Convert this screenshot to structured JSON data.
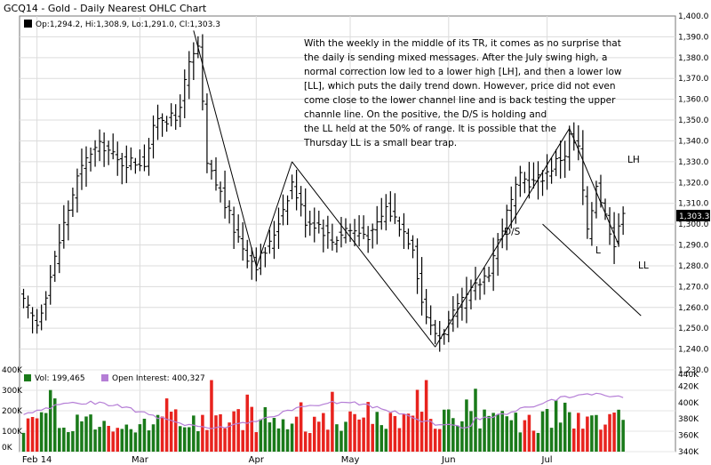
{
  "chart": {
    "title": "GCQ14 - Gold - Daily Nearest OHLC Chart",
    "ohlc_label": "Op:1,294.2, Hi:1,308.9, Lo:1,291.0, Cl:1,303.3",
    "last_price": "1,303.3",
    "volume_label": "Vol: 199,465",
    "oi_label": "Open Interest: 400,327",
    "annotation_lines": [
      "With the weekly in the middle of its TR, it comes as no surprise that",
      "the daily is sending mixed messages.  After the July swing high, a",
      "normal correction low led to a lower high [LH], and then a lower low",
      "[LL], which puts the daily trend down.  However, price did not even",
      "come close to the lower channel line and is back testing the upper",
      "channle line.  On the positive, the D/S is holding and",
      "the LL held at the 50% of range.  It is possible that the",
      "Thursday LL is a small bear trap."
    ],
    "labels": {
      "ds": "D/S",
      "lh": "LH",
      "l": "L",
      "ll": "LL"
    },
    "colors": {
      "up": "#1a7a1a",
      "down": "#e8231e",
      "oi": "#b57ed6",
      "bar": "#000000"
    }
  },
  "chart_data": [
    {
      "type": "ohlc",
      "title": "GCQ14 - Gold - Daily Nearest OHLC Chart",
      "y_ticks": [
        "1,230.0",
        "1,240.0",
        "1,250.0",
        "1,260.0",
        "1,270.0",
        "1,280.0",
        "1,290.0",
        "1,300.0",
        "1,310.0",
        "1,320.0",
        "1,330.0",
        "1,340.0",
        "1,350.0",
        "1,360.0",
        "1,370.0",
        "1,380.0",
        "1,390.0",
        "1,400.0"
      ],
      "ylim": [
        1230,
        1400
      ],
      "x_ticks": [
        "Feb 14",
        "Mar",
        "Apr",
        "May",
        "Jun",
        "Jul"
      ],
      "x_tick_index": [
        3,
        26,
        52,
        73,
        95,
        117
      ],
      "n_days": 145,
      "trendlines": [
        {
          "from": [
            38,
            1393
          ],
          "to": [
            52,
            1280
          ]
        },
        {
          "from": [
            52,
            1279
          ],
          "to": [
            60,
            1330
          ]
        },
        {
          "from": [
            60,
            1330
          ],
          "to": [
            92,
            1241
          ]
        },
        {
          "from": [
            92,
            1241
          ],
          "to": [
            122,
            1346
          ]
        },
        {
          "from": [
            122,
            1346
          ],
          "to": [
            133,
            1290
          ]
        },
        {
          "from": [
            116,
            1300
          ],
          "to": [
            138,
            1256
          ]
        }
      ],
      "anchors": [
        [
          0,
          1262
        ],
        [
          3,
          1252
        ],
        [
          6,
          1275
        ],
        [
          9,
          1300
        ],
        [
          12,
          1322
        ],
        [
          15,
          1335
        ],
        [
          18,
          1338
        ],
        [
          21,
          1330
        ],
        [
          24,
          1330
        ],
        [
          27,
          1330
        ],
        [
          30,
          1352
        ],
        [
          34,
          1350
        ],
        [
          37,
          1376
        ],
        [
          39,
          1385
        ],
        [
          41,
          1328
        ],
        [
          44,
          1315
        ],
        [
          47,
          1298
        ],
        [
          50,
          1285
        ],
        [
          52,
          1281
        ],
        [
          55,
          1290
        ],
        [
          58,
          1308
        ],
        [
          60,
          1320
        ],
        [
          63,
          1302
        ],
        [
          66,
          1300
        ],
        [
          69,
          1292
        ],
        [
          72,
          1298
        ],
        [
          75,
          1296
        ],
        [
          78,
          1295
        ],
        [
          81,
          1308
        ],
        [
          84,
          1300
        ],
        [
          87,
          1290
        ],
        [
          89,
          1263
        ],
        [
          91,
          1250
        ],
        [
          93,
          1246
        ],
        [
          96,
          1256
        ],
        [
          99,
          1265
        ],
        [
          102,
          1272
        ],
        [
          104,
          1278
        ],
        [
          106,
          1292
        ],
        [
          108,
          1305
        ],
        [
          111,
          1322
        ],
        [
          114,
          1320
        ],
        [
          117,
          1325
        ],
        [
          119,
          1330
        ],
        [
          121,
          1334
        ],
        [
          122,
          1342
        ],
        [
          124,
          1336
        ],
        [
          126,
          1295
        ],
        [
          128,
          1320
        ],
        [
          130,
          1304
        ],
        [
          132,
          1292
        ],
        [
          133,
          1300
        ],
        [
          134,
          1303
        ]
      ]
    },
    {
      "type": "bar",
      "title": "Volume",
      "y_ticks": [
        "0K",
        "100K",
        "200K",
        "300K",
        "400K"
      ],
      "ylim": [
        0,
        400000
      ],
      "x_ticks": [
        "Feb 14",
        "Mar",
        "Apr",
        "May",
        "Jun",
        "Jul"
      ]
    },
    {
      "type": "line",
      "title": "Open Interest",
      "y_ticks": [
        "340K",
        "360K",
        "380K",
        "400K",
        "420K",
        "440K"
      ],
      "ylim": [
        340000,
        440000
      ]
    }
  ]
}
